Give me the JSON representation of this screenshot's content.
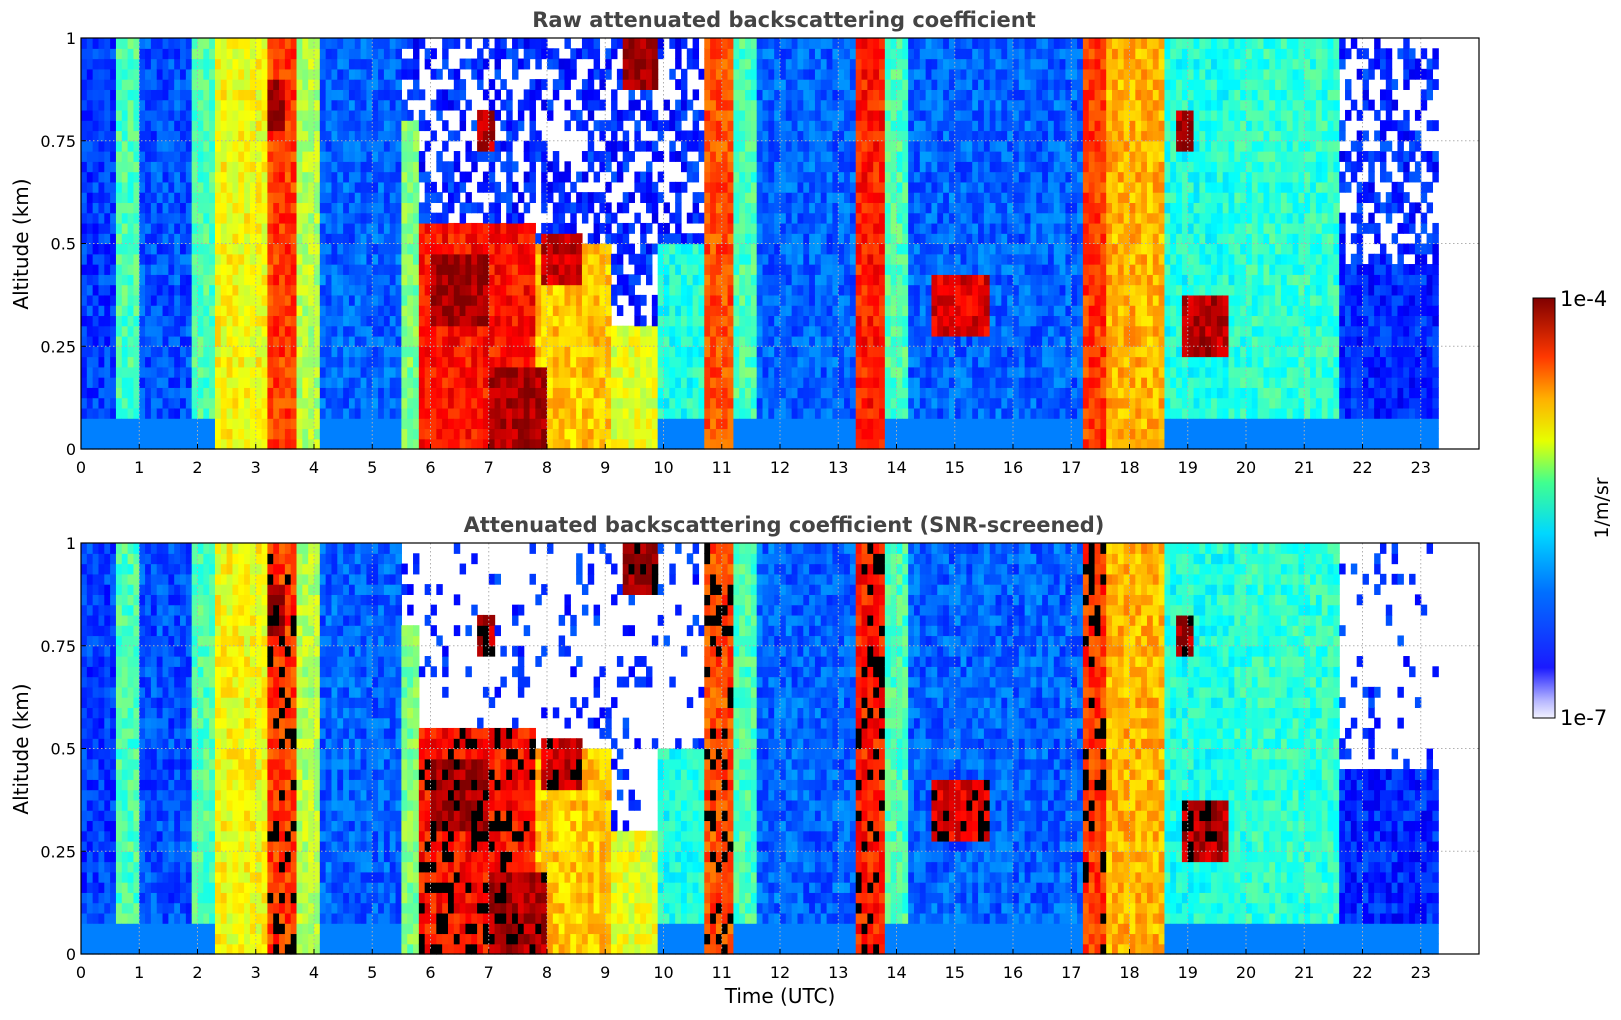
{
  "chart_data": [
    {
      "type": "heatmap",
      "title": "Raw attenuated backscattering coefficient",
      "xlabel": "",
      "ylabel": "Altitude (km)",
      "xlim": [
        0,
        24
      ],
      "ylim": [
        0,
        1
      ],
      "x_ticks": [
        "0",
        "1",
        "2",
        "3",
        "4",
        "5",
        "6",
        "7",
        "8",
        "9",
        "10",
        "11",
        "12",
        "13",
        "14",
        "15",
        "16",
        "17",
        "18",
        "19",
        "20",
        "21",
        "22",
        "23"
      ],
      "y_ticks": [
        "0",
        "0.25",
        "0.5",
        "0.75",
        "1"
      ],
      "grid": true,
      "data_extent_hours": [
        0,
        23.3
      ],
      "colormap": "jet",
      "screened": false,
      "columns": [
        {
          "x0": 0.0,
          "x1": 0.6,
          "level": 0.18,
          "top": 1.0
        },
        {
          "x0": 0.6,
          "x1": 1.0,
          "level": 0.45,
          "top": 1.0
        },
        {
          "x0": 1.0,
          "x1": 1.9,
          "level": 0.2,
          "top": 1.0
        },
        {
          "x0": 1.9,
          "x1": 2.3,
          "level": 0.45,
          "top": 1.0
        },
        {
          "x0": 2.3,
          "x1": 3.2,
          "level": 0.62,
          "top": 1.0
        },
        {
          "x0": 3.2,
          "x1": 3.7,
          "level": 0.82,
          "top": 1.0
        },
        {
          "x0": 3.7,
          "x1": 4.1,
          "level": 0.55,
          "top": 1.0
        },
        {
          "x0": 4.1,
          "x1": 5.5,
          "level": 0.22,
          "top": 1.0
        },
        {
          "x0": 5.5,
          "x1": 5.8,
          "level": 0.5,
          "top": 0.8
        },
        {
          "x0": 5.8,
          "x1": 7.8,
          "level": 0.86,
          "top": 0.55
        },
        {
          "x0": 7.8,
          "x1": 9.1,
          "level": 0.68,
          "top": 0.5
        },
        {
          "x0": 9.1,
          "x1": 9.9,
          "level": 0.6,
          "top": 0.3
        },
        {
          "x0": 9.9,
          "x1": 10.7,
          "level": 0.4,
          "top": 0.5
        },
        {
          "x0": 10.7,
          "x1": 11.2,
          "level": 0.8,
          "top": 1.0
        },
        {
          "x0": 11.2,
          "x1": 11.6,
          "level": 0.45,
          "top": 1.0
        },
        {
          "x0": 11.6,
          "x1": 13.3,
          "level": 0.22,
          "top": 1.0
        },
        {
          "x0": 13.3,
          "x1": 13.8,
          "level": 0.85,
          "top": 1.0
        },
        {
          "x0": 13.8,
          "x1": 14.2,
          "level": 0.45,
          "top": 1.0
        },
        {
          "x0": 14.2,
          "x1": 17.2,
          "level": 0.22,
          "top": 1.0
        },
        {
          "x0": 17.2,
          "x1": 17.6,
          "level": 0.82,
          "top": 1.0
        },
        {
          "x0": 17.6,
          "x1": 18.6,
          "level": 0.7,
          "top": 1.0
        },
        {
          "x0": 18.6,
          "x1": 19.8,
          "level": 0.4,
          "top": 1.0
        },
        {
          "x0": 19.8,
          "x1": 21.6,
          "level": 0.42,
          "top": 1.0
        },
        {
          "x0": 21.6,
          "x1": 23.3,
          "level": 0.16,
          "top": 0.45
        }
      ],
      "features": [
        {
          "x0": 9.3,
          "x1": 9.9,
          "y0": 0.87,
          "y1": 0.99,
          "level": 0.98
        },
        {
          "x0": 6.0,
          "x1": 7.0,
          "y0": 0.3,
          "y1": 0.48,
          "level": 0.97
        },
        {
          "x0": 7.0,
          "x1": 8.0,
          "y0": 0.0,
          "y1": 0.2,
          "level": 0.96
        },
        {
          "x0": 7.9,
          "x1": 8.6,
          "y0": 0.4,
          "y1": 0.52,
          "level": 0.93
        },
        {
          "x0": 18.9,
          "x1": 19.7,
          "y0": 0.22,
          "y1": 0.38,
          "level": 0.95
        },
        {
          "x0": 14.6,
          "x1": 15.6,
          "y0": 0.28,
          "y1": 0.42,
          "level": 0.9
        },
        {
          "x0": 3.2,
          "x1": 3.5,
          "y0": 0.78,
          "y1": 0.9,
          "level": 0.97
        },
        {
          "x0": 6.8,
          "x1": 7.1,
          "y0": 0.72,
          "y1": 0.82,
          "level": 0.95
        },
        {
          "x0": 18.8,
          "x1": 19.1,
          "y0": 0.72,
          "y1": 0.82,
          "level": 0.95
        }
      ]
    },
    {
      "type": "heatmap",
      "title": "Attenuated backscattering coefficient (SNR-screened)",
      "xlabel": "Time (UTC)",
      "ylabel": "Altitude (km)",
      "xlim": [
        0,
        24
      ],
      "ylim": [
        0,
        1
      ],
      "x_ticks": [
        "0",
        "1",
        "2",
        "3",
        "4",
        "5",
        "6",
        "7",
        "8",
        "9",
        "10",
        "11",
        "12",
        "13",
        "14",
        "15",
        "16",
        "17",
        "18",
        "19",
        "20",
        "21",
        "22",
        "23"
      ],
      "y_ticks": [
        "0",
        "0.25",
        "0.5",
        "0.75",
        "1"
      ],
      "grid": true,
      "data_extent_hours": [
        0,
        23.3
      ],
      "colormap": "jet",
      "screened": true
    }
  ],
  "colorbar": {
    "label": "1/m/sr",
    "max_label": "1e-4",
    "min_label": "1e-7",
    "scale": "log"
  }
}
